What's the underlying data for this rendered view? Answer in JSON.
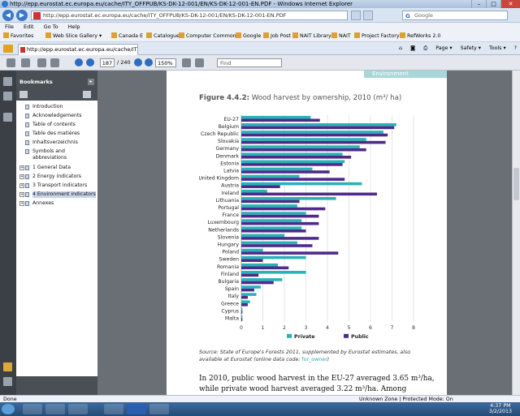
{
  "window": {
    "title": "http://epp.eurostat.ec.europa.eu/cache/ITY_OFFPUB/KS-DK-12-001/EN/KS-DK-12-001-EN.PDF - Windows Internet Explorer"
  },
  "address": {
    "url": "http://epp.eurostat.ec.europa.eu/cache/ITY_OFFPUB/KS-DK-12-001/EN/KS-DK-12-001-EN.PDF",
    "search_text": "Google"
  },
  "menu": [
    "File",
    "Edit",
    "Go To",
    "Help"
  ],
  "favorites": {
    "label": "Favorites",
    "items": [
      "Web Slice Gallery ▾",
      "Canada E",
      "Catalogue",
      "Computer Commons",
      "Google",
      "Job Post",
      "NAIT Library",
      "NAIT",
      "Project Factory",
      "RefWorks 2.0"
    ]
  },
  "tab": {
    "label": "http://epp.eurostat.ec.europa.eu/cache/ITY_OFF..."
  },
  "tab_tools": [
    "Page ▾",
    "Safety ▾",
    "Tools ▾"
  ],
  "pdf_toolbar": {
    "page_current": "187",
    "page_total": "/ 240",
    "zoom": "150%",
    "find_placeholder": "Find"
  },
  "bookmarks": {
    "title": "Bookmarks",
    "items": [
      {
        "label": "Introduction",
        "expandable": false
      },
      {
        "label": "Acknowledgements",
        "expandable": false
      },
      {
        "label": "Table of contents",
        "expandable": false
      },
      {
        "label": "Table des matières",
        "expandable": false
      },
      {
        "label": "Inhaltsverzeichnis",
        "expandable": false
      },
      {
        "label": "Symbols and abbreviations",
        "expandable": false
      },
      {
        "label": "1 General Data",
        "expandable": true
      },
      {
        "label": "2 Energy indicators",
        "expandable": true
      },
      {
        "label": "3 Transport indicators",
        "expandable": true
      },
      {
        "label": "4 Environment indicators",
        "expandable": true,
        "selected": true
      },
      {
        "label": "Annexes",
        "expandable": true
      }
    ]
  },
  "document": {
    "header_band": "Environment",
    "figure_title_bold": "Figure 4.4.2:",
    "figure_title_rest": " Wood harvest by ownership, 2010 (m³/ ha)",
    "source_label": "Source:",
    "source_text": " State of Europe's Forests 2011, supplemented by Eurostat estimates, also available at Eurostat (online data code: ",
    "source_code": "for_owner",
    "source_end": ")",
    "body_text": "In 2010, public wood harvest in the EU-27 averaged 3.65 m³/ha, while private wood harvest averaged 3.22 m³/ha. Among Member States, the"
  },
  "chart_data": {
    "type": "bar",
    "orientation": "horizontal",
    "categories": [
      "EU-27",
      "Belgium",
      "Czech Republic",
      "Slovakia",
      "Germany",
      "Denmark",
      "Estonia",
      "Latvia",
      "United Kingdom",
      "Austria",
      "Ireland",
      "Lithuania",
      "Portugal",
      "France",
      "Luxembourg",
      "Netherlands",
      "Slovenia",
      "Hungary",
      "Poland",
      "Sweden",
      "Romania",
      "Finland",
      "Bulgaria",
      "Spain",
      "Italy",
      "Greece",
      "Cyprus",
      "Malta"
    ],
    "series": [
      {
        "name": "Private",
        "color": "#29b2b6",
        "values": [
          3.22,
          7.2,
          6.6,
          5.8,
          5.5,
          4.7,
          4.8,
          3.3,
          2.7,
          5.6,
          1.2,
          4.4,
          2.6,
          3.0,
          2.8,
          2.8,
          2.0,
          2.6,
          1.0,
          3.0,
          1.7,
          3.0,
          1.9,
          0.9,
          0.7,
          0.4,
          0.05,
          0.05
        ]
      },
      {
        "name": "Public",
        "color": "#4f2a8a",
        "values": [
          3.65,
          7.1,
          6.8,
          6.7,
          5.8,
          5.1,
          4.7,
          4.1,
          4.8,
          1.8,
          6.3,
          2.7,
          3.9,
          3.6,
          3.6,
          3.0,
          3.6,
          3.3,
          4.5,
          1.0,
          2.2,
          0.8,
          1.5,
          0.6,
          0.3,
          0.3,
          0.05,
          0.05
        ]
      }
    ],
    "xticks": [
      "0",
      "1",
      "2",
      "3",
      "4",
      "5",
      "6",
      "7",
      "8"
    ],
    "xlim": [
      0,
      8
    ],
    "grid": true,
    "legend_position": "bottom"
  },
  "status": {
    "left": "Done",
    "zone": "Unknown Zone | Protected Mode: On"
  },
  "clock": {
    "time": "4:37 PM",
    "date": "3/2/2013"
  }
}
